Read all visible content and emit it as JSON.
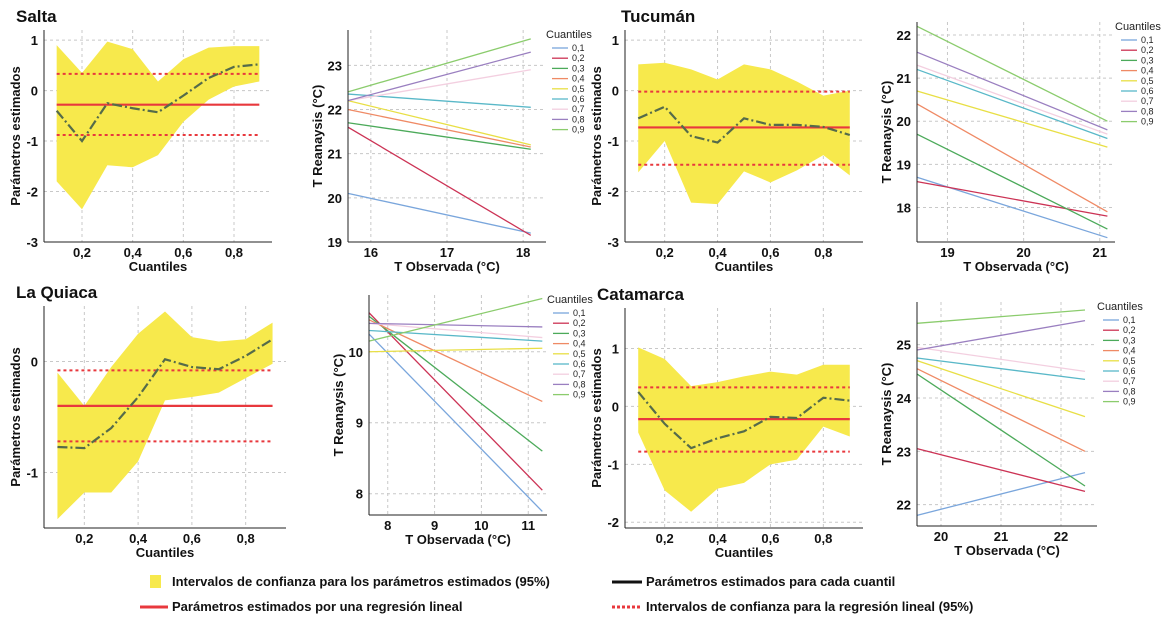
{
  "chart_data": [
    {
      "type": "line",
      "title": "Salta",
      "xlabel": "Cuantiles",
      "ylabel": "Parámetros estimados",
      "xlim": [
        0.05,
        0.95
      ],
      "ylim": [
        -3,
        1.2
      ],
      "xticks": [
        0.2,
        0.4,
        0.6,
        0.8
      ],
      "xtick_labels": [
        "0,2",
        "0,4",
        "0,6",
        "0,8"
      ],
      "yticks": [
        -3,
        -2,
        -1,
        0,
        1
      ],
      "ytick_labels": [
        "-3",
        "-2",
        "-1",
        "0",
        "1"
      ],
      "grid": true,
      "x": [
        0.1,
        0.2,
        0.3,
        0.4,
        0.5,
        0.6,
        0.7,
        0.8,
        0.9
      ],
      "estimates": [
        -0.4,
        -1.0,
        -0.25,
        -0.35,
        -0.43,
        -0.1,
        0.25,
        0.47,
        0.52
      ],
      "ci_upper": [
        0.9,
        0.35,
        0.97,
        0.82,
        0.18,
        0.62,
        0.85,
        0.88,
        0.88
      ],
      "ci_lower": [
        -1.8,
        -2.35,
        -1.48,
        -1.52,
        -1.28,
        -0.62,
        -0.18,
        0.08,
        0.18
      ],
      "regression": -0.28,
      "regression_ci": [
        -0.88,
        0.33
      ]
    },
    {
      "type": "line",
      "xlabel": "T Observada (°C)",
      "ylabel": "T Reanaysis (°C)",
      "xlim": [
        15.7,
        18.3
      ],
      "ylim": [
        19,
        23.8
      ],
      "xticks": [
        16,
        17,
        18
      ],
      "xtick_labels": [
        "16",
        "17",
        "18"
      ],
      "yticks": [
        19,
        20,
        21,
        22,
        23
      ],
      "ytick_labels": [
        "19",
        "20",
        "21",
        "22",
        "23"
      ],
      "grid": true,
      "legend_title": "Cuantiles",
      "legend_position": "top-right",
      "x": [
        15.7,
        18.1
      ],
      "series": [
        {
          "name": "0,1",
          "color": "#7aa6dc",
          "values": [
            20.1,
            19.2
          ]
        },
        {
          "name": "0,2",
          "color": "#cc3355",
          "values": [
            21.6,
            19.15
          ]
        },
        {
          "name": "0,3",
          "color": "#4caa5a",
          "values": [
            21.7,
            21.1
          ]
        },
        {
          "name": "0,4",
          "color": "#ef8a65",
          "values": [
            22.0,
            21.15
          ]
        },
        {
          "name": "0,5",
          "color": "#e8df45",
          "values": [
            22.2,
            21.2
          ]
        },
        {
          "name": "0,6",
          "color": "#59b8c8",
          "values": [
            22.35,
            22.05
          ]
        },
        {
          "name": "0,7",
          "color": "#f3cfe0",
          "values": [
            22.2,
            22.9
          ]
        },
        {
          "name": "0,8",
          "color": "#9a7fc0",
          "values": [
            22.2,
            23.3
          ]
        },
        {
          "name": "0,9",
          "color": "#8bcc6d",
          "values": [
            22.4,
            23.6
          ]
        }
      ]
    },
    {
      "type": "line",
      "title": "Tucumán",
      "xlabel": "Cuantiles",
      "ylabel": "Parámetros estimados",
      "xlim": [
        0.05,
        0.95
      ],
      "ylim": [
        -3,
        1.2
      ],
      "xticks": [
        0.2,
        0.4,
        0.6,
        0.8
      ],
      "xtick_labels": [
        "0,2",
        "0,4",
        "0,6",
        "0,8"
      ],
      "yticks": [
        -3,
        -2,
        -1,
        0,
        1
      ],
      "ytick_labels": [
        "-3",
        "-2",
        "-1",
        "0",
        "1"
      ],
      "grid": true,
      "x": [
        0.1,
        0.2,
        0.3,
        0.4,
        0.5,
        0.6,
        0.7,
        0.8,
        0.9
      ],
      "estimates": [
        -0.55,
        -0.32,
        -0.9,
        -1.03,
        -0.55,
        -0.68,
        -0.68,
        -0.72,
        -0.88
      ],
      "ci_upper": [
        0.52,
        0.55,
        0.42,
        0.22,
        0.52,
        0.42,
        0.18,
        -0.1,
        0.0
      ],
      "ci_lower": [
        -1.62,
        -1.0,
        -2.22,
        -2.25,
        -1.6,
        -1.82,
        -1.58,
        -1.28,
        -1.68
      ],
      "regression": -0.73,
      "regression_ci": [
        -1.47,
        -0.02
      ]
    },
    {
      "type": "line",
      "xlabel": "T Observada (°C)",
      "ylabel": "T Reanaysis (°C)",
      "xlim": [
        18.6,
        21.2
      ],
      "ylim": [
        17.2,
        22.3
      ],
      "xticks": [
        19,
        20,
        21
      ],
      "xtick_labels": [
        "19",
        "20",
        "21"
      ],
      "yticks": [
        18,
        19,
        20,
        21,
        22
      ],
      "ytick_labels": [
        "18",
        "19",
        "20",
        "21",
        "22"
      ],
      "grid": true,
      "legend_title": "Cuantiles",
      "legend_position": "top-right",
      "x": [
        18.6,
        21.1
      ],
      "series": [
        {
          "name": "0,1",
          "color": "#7aa6dc",
          "values": [
            18.7,
            17.3
          ]
        },
        {
          "name": "0,2",
          "color": "#cc3355",
          "values": [
            18.6,
            17.8
          ]
        },
        {
          "name": "0,3",
          "color": "#4caa5a",
          "values": [
            19.7,
            17.5
          ]
        },
        {
          "name": "0,4",
          "color": "#ef8a65",
          "values": [
            20.4,
            17.9
          ]
        },
        {
          "name": "0,5",
          "color": "#e8df45",
          "values": [
            20.7,
            19.4
          ]
        },
        {
          "name": "0,6",
          "color": "#59b8c8",
          "values": [
            21.2,
            19.6
          ]
        },
        {
          "name": "0,7",
          "color": "#f3cfe0",
          "values": [
            21.3,
            19.7
          ]
        },
        {
          "name": "0,8",
          "color": "#9a7fc0",
          "values": [
            21.6,
            19.8
          ]
        },
        {
          "name": "0,9",
          "color": "#8bcc6d",
          "values": [
            22.2,
            20.0
          ]
        }
      ]
    },
    {
      "type": "line",
      "title": "La Quiaca",
      "xlabel": "Cuantiles",
      "ylabel": "Parámetros estimados",
      "xlim": [
        0.05,
        0.95
      ],
      "ylim": [
        -1.5,
        0.5
      ],
      "xticks": [
        0.2,
        0.4,
        0.6,
        0.8
      ],
      "xtick_labels": [
        "0,2",
        "0,4",
        "0,6",
        "0,8"
      ],
      "yticks": [
        -1,
        0
      ],
      "ytick_labels": [
        "-1",
        "0"
      ],
      "grid": true,
      "x": [
        0.1,
        0.2,
        0.3,
        0.4,
        0.5,
        0.6,
        0.7,
        0.8,
        0.9
      ],
      "estimates": [
        -0.77,
        -0.78,
        -0.6,
        -0.32,
        0.02,
        -0.05,
        -0.07,
        0.05,
        0.2
      ],
      "ci_upper": [
        -0.1,
        -0.4,
        -0.05,
        0.25,
        0.45,
        0.22,
        0.18,
        0.2,
        0.35
      ],
      "ci_lower": [
        -1.42,
        -1.18,
        -1.18,
        -0.9,
        -0.35,
        -0.32,
        -0.28,
        -0.15,
        -0.02
      ],
      "regression": -0.4,
      "regression_ci": [
        -0.72,
        -0.08
      ]
    },
    {
      "type": "line",
      "xlabel": "T Observada (°C)",
      "ylabel": "T Reanaysis (°C)",
      "xlim": [
        7.6,
        11.4
      ],
      "ylim": [
        7.7,
        10.8
      ],
      "xticks": [
        8,
        9,
        10,
        11
      ],
      "xtick_labels": [
        "8",
        "9",
        "10",
        "11"
      ],
      "yticks": [
        8,
        9,
        10
      ],
      "ytick_labels": [
        "8",
        "9",
        "10"
      ],
      "grid": true,
      "legend_title": "Cuantiles",
      "legend_position": "top-right",
      "x": [
        7.6,
        11.3
      ],
      "series": [
        {
          "name": "0,1",
          "color": "#7aa6dc",
          "values": [
            10.25,
            7.75
          ]
        },
        {
          "name": "0,2",
          "color": "#cc3355",
          "values": [
            10.55,
            8.05
          ]
        },
        {
          "name": "0,3",
          "color": "#4caa5a",
          "values": [
            10.5,
            8.6
          ]
        },
        {
          "name": "0,4",
          "color": "#ef8a65",
          "values": [
            10.45,
            9.3
          ]
        },
        {
          "name": "0,5",
          "color": "#e8df45",
          "values": [
            10.0,
            10.05
          ]
        },
        {
          "name": "0,6",
          "color": "#59b8c8",
          "values": [
            10.3,
            10.15
          ]
        },
        {
          "name": "0,7",
          "color": "#f3cfe0",
          "values": [
            10.4,
            10.2
          ]
        },
        {
          "name": "0,8",
          "color": "#9a7fc0",
          "values": [
            10.4,
            10.35
          ]
        },
        {
          "name": "0,9",
          "color": "#8bcc6d",
          "values": [
            10.15,
            10.75
          ]
        }
      ]
    },
    {
      "type": "line",
      "title": "Catamarca",
      "xlabel": "Cuantiles",
      "ylabel": "Parámetros estimados",
      "xlim": [
        0.05,
        0.95
      ],
      "ylim": [
        -2.1,
        1.7
      ],
      "xticks": [
        0.2,
        0.4,
        0.6,
        0.8
      ],
      "xtick_labels": [
        "0,2",
        "0,4",
        "0,6",
        "0,8"
      ],
      "yticks": [
        -2,
        -1,
        0,
        1
      ],
      "ytick_labels": [
        "-2",
        "-1",
        "0",
        "1"
      ],
      "grid": true,
      "x": [
        0.1,
        0.2,
        0.3,
        0.4,
        0.5,
        0.6,
        0.7,
        0.8,
        0.9
      ],
      "estimates": [
        0.25,
        -0.3,
        -0.72,
        -0.55,
        -0.43,
        -0.18,
        -0.2,
        0.15,
        0.1
      ],
      "ci_upper": [
        1.02,
        0.82,
        0.35,
        0.42,
        0.52,
        0.6,
        0.55,
        0.72,
        0.72
      ],
      "ci_lower": [
        -0.45,
        -1.45,
        -1.82,
        -1.42,
        -1.32,
        -1.0,
        -0.92,
        -0.35,
        -0.52
      ],
      "regression": -0.22,
      "regression_ci": [
        -0.78,
        0.33
      ]
    },
    {
      "type": "line",
      "xlabel": "T Observada (°C)",
      "ylabel": "T Reanaysis (°C)",
      "xlim": [
        19.6,
        22.6
      ],
      "ylim": [
        21.6,
        25.8
      ],
      "xticks": [
        20,
        21,
        22
      ],
      "xtick_labels": [
        "20",
        "21",
        "22"
      ],
      "yticks": [
        22,
        23,
        24,
        25
      ],
      "ytick_labels": [
        "22",
        "23",
        "24",
        "25"
      ],
      "grid": true,
      "legend_title": "Cuantiles",
      "legend_position": "top-right",
      "x": [
        19.6,
        22.4
      ],
      "series": [
        {
          "name": "0,1",
          "color": "#7aa6dc",
          "values": [
            21.8,
            22.6
          ]
        },
        {
          "name": "0,2",
          "color": "#cc3355",
          "values": [
            23.05,
            22.25
          ]
        },
        {
          "name": "0,3",
          "color": "#4caa5a",
          "values": [
            24.45,
            22.35
          ]
        },
        {
          "name": "0,4",
          "color": "#ef8a65",
          "values": [
            24.55,
            23.0
          ]
        },
        {
          "name": "0,5",
          "color": "#e8df45",
          "values": [
            24.7,
            23.65
          ]
        },
        {
          "name": "0,6",
          "color": "#59b8c8",
          "values": [
            24.75,
            24.35
          ]
        },
        {
          "name": "0,7",
          "color": "#f3cfe0",
          "values": [
            24.95,
            24.5
          ]
        },
        {
          "name": "0,8",
          "color": "#9a7fc0",
          "values": [
            24.9,
            25.45
          ]
        },
        {
          "name": "0,9",
          "color": "#8bcc6d",
          "values": [
            25.4,
            25.65
          ]
        }
      ]
    }
  ],
  "legend": {
    "ci_estimates": "Intervalos de confianza para los parámetros estimados (95%)",
    "estimates": "Parámetros estimados para cada cuantil",
    "regression": "Parámetros estimados por una regresión lineal",
    "regression_ci": "Intervalos de confianza para la regresión lineal (95%)",
    "colors": {
      "band": "#f7e94c",
      "estimate": "#556b4a",
      "regression": "#e8383d",
      "regression_ci": "#e8383d",
      "grid": "#c8c8c8"
    }
  }
}
